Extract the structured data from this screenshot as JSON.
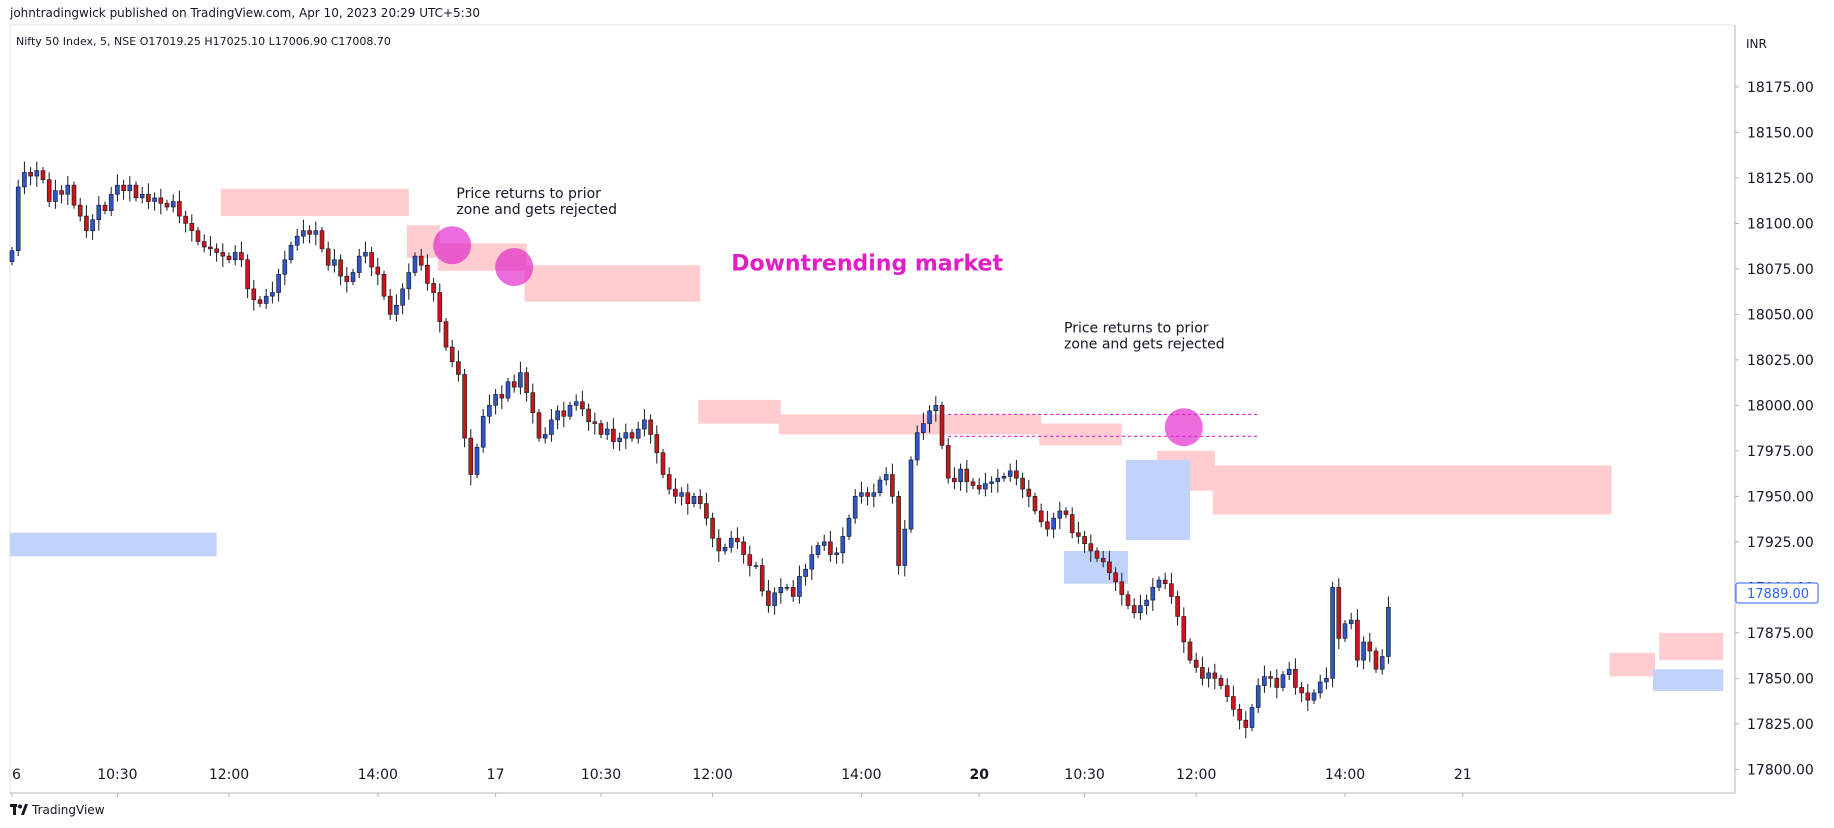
{
  "publisher": "johntradingwick published on TradingView.com, Apr 10, 2023 20:29 UTC+5:30",
  "legend_text": "Nifty 50 Index, 5, NSE  O17019.25  H17025.10  L17006.90  C17008.70",
  "currency": "INR",
  "last_price_label": "17889.00",
  "brand": "TradingView",
  "colors": {
    "up": "#2f56c4",
    "down": "#c5181b",
    "supply_zone": "#ffcdd0",
    "demand_zone": "#c2d3fb",
    "annotation": "#e01ec8",
    "price_tag": "#2962ff"
  },
  "chart_data": {
    "type": "candlestick",
    "title": "Nifty 50 Index, 5, NSE",
    "ylim": [
      17787,
      18209
    ],
    "y_ticks": [
      "18175.00",
      "18150.00",
      "18125.00",
      "18100.00",
      "18075.00",
      "18050.00",
      "18025.00",
      "18000.00",
      "17975.00",
      "17950.00",
      "17925.00",
      "17900.00",
      "17875.00",
      "17850.00",
      "17825.00",
      "17800.00"
    ],
    "x_ticks": [
      {
        "label": "6",
        "bar": 0,
        "bold": false
      },
      {
        "label": "10:30",
        "bar": 17,
        "bold": false
      },
      {
        "label": "12:00",
        "bar": 35,
        "bold": false
      },
      {
        "label": "14:00",
        "bar": 59,
        "bold": false
      },
      {
        "label": "17",
        "bar": 78,
        "bold": false
      },
      {
        "label": "10:30",
        "bar": 95,
        "bold": false
      },
      {
        "label": "12:00",
        "bar": 113,
        "bold": false
      },
      {
        "label": "14:00",
        "bar": 137,
        "bold": false
      },
      {
        "label": "20",
        "bar": 156,
        "bold": true
      },
      {
        "label": "10:30",
        "bar": 173,
        "bold": false
      },
      {
        "label": "12:00",
        "bar": 191,
        "bold": false
      },
      {
        "label": "14:00",
        "bar": 215,
        "bold": false
      },
      {
        "label": "21",
        "bar": 234,
        "bold": false
      }
    ],
    "closes": [
      18085,
      18120,
      18128,
      18126,
      18129,
      18124,
      18112,
      18118,
      18116,
      18121,
      18110,
      18104,
      18096,
      18102,
      18110,
      18107,
      18116,
      18121,
      18118,
      18121,
      18114,
      18116,
      18112,
      18114,
      18111,
      18109,
      18112,
      18104,
      18100,
      18096,
      18090,
      18087,
      18086,
      18084,
      18082,
      18080,
      18084,
      18080,
      18064,
      18058,
      18056,
      18060,
      18062,
      18072,
      18080,
      18088,
      18093,
      18096,
      18094,
      18096,
      18086,
      18077,
      18080,
      18071,
      18068,
      18073,
      18082,
      18084,
      18076,
      18072,
      18060,
      18050,
      18055,
      18064,
      18073,
      18082,
      18077,
      18067,
      18062,
      18046,
      18032,
      18024,
      18017,
      17982,
      17962,
      17977,
      17994,
      18000,
      18006,
      18004,
      18013,
      18010,
      18018,
      18007,
      17996,
      17982,
      17984,
      17992,
      17997,
      17994,
      18000,
      18002,
      17998,
      17991,
      17990,
      17984,
      17987,
      17980,
      17982,
      17985,
      17982,
      17987,
      17992,
      17984,
      17974,
      17962,
      17954,
      17950,
      17952,
      17946,
      17950,
      17946,
      17938,
      17927,
      17920,
      17922,
      17927,
      17925,
      17918,
      17912,
      17912,
      17898,
      17890,
      17897,
      17900,
      17900,
      17895,
      17906,
      17910,
      17918,
      17923,
      17925,
      17918,
      17919,
      17928,
      17938,
      17950,
      17952,
      17950,
      17952,
      17959,
      17962,
      17950,
      17912,
      17932,
      17970,
      17985,
      17990,
      17997,
      18000,
      17978,
      17960,
      17958,
      17965,
      17958,
      17956,
      17954,
      17957,
      17958,
      17960,
      17961,
      17964,
      17960,
      17954,
      17950,
      17942,
      17936,
      17932,
      17938,
      17942,
      17940,
      17930,
      17928,
      17924,
      17920,
      17916,
      17914,
      17908,
      17903,
      17896,
      17890,
      17886,
      17890,
      17893,
      17900,
      17904,
      17902,
      17895,
      17884,
      17870,
      17860,
      17856,
      17850,
      17853,
      17850,
      17846,
      17840,
      17833,
      17827,
      17823,
      17834,
      17846,
      17851,
      17850,
      17845,
      17852,
      17855,
      17845,
      17842,
      17838,
      17842,
      17848,
      17850,
      17900,
      17872,
      17880,
      17882,
      17860,
      17870,
      17865,
      17855,
      17862,
      17889
    ],
    "supply_zones": [
      {
        "from_bar": 34,
        "to_bar": 64,
        "top": 18119,
        "bottom": 18104
      },
      {
        "from_bar": 64,
        "to_bar": 69,
        "top": 18099,
        "bottom": 18081
      },
      {
        "from_bar": 69,
        "to_bar": 83,
        "top": 18089,
        "bottom": 18074
      },
      {
        "from_bar": 83,
        "to_bar": 111,
        "top": 18077,
        "bottom": 18057
      },
      {
        "from_bar": 111,
        "to_bar": 124,
        "top": 18003,
        "bottom": 17990
      },
      {
        "from_bar": 124,
        "to_bar": 166,
        "top": 17995,
        "bottom": 17984
      },
      {
        "from_bar": 166,
        "to_bar": 179,
        "top": 17990,
        "bottom": 17978
      },
      {
        "from_bar": 185,
        "to_bar": 194,
        "top": 17975,
        "bottom": 17953
      },
      {
        "from_bar": 194,
        "to_bar": 258,
        "top": 17967,
        "bottom": 17940
      },
      {
        "from_bar": 258,
        "to_bar": 265,
        "top": 17864,
        "bottom": 17851
      },
      {
        "from_bar": 266,
        "to_bar": 276,
        "top": 17875,
        "bottom": 17860
      }
    ],
    "demand_zones": [
      {
        "from_bar": 0,
        "to_bar": 33,
        "top": 17930,
        "bottom": 17917
      },
      {
        "from_bar": 170,
        "to_bar": 180,
        "top": 17920,
        "bottom": 17902
      },
      {
        "from_bar": 180,
        "to_bar": 190,
        "top": 17970,
        "bottom": 17926
      },
      {
        "from_bar": 265,
        "to_bar": 276,
        "top": 17855,
        "bottom": 17843
      }
    ],
    "dotted_lines": [
      {
        "from_bar": 151,
        "to_bar": 201,
        "price": 17995
      },
      {
        "from_bar": 151,
        "to_bar": 201,
        "price": 17983
      }
    ],
    "highlight_circles": [
      {
        "bar": 71,
        "price": 18088
      },
      {
        "bar": 81,
        "price": 18076
      },
      {
        "bar": 189,
        "price": 17988
      }
    ],
    "annotations": [
      {
        "lines": [
          "Price returns to prior",
          "zone and gets rejected"
        ],
        "bar": 72,
        "price": 18114
      },
      {
        "lines": [
          "Price returns to prior",
          "zone and gets rejected"
        ],
        "bar": 170,
        "price": 18040
      }
    ],
    "headline": {
      "text": "Downtrending market",
      "bar": 116,
      "price": 18074
    }
  }
}
